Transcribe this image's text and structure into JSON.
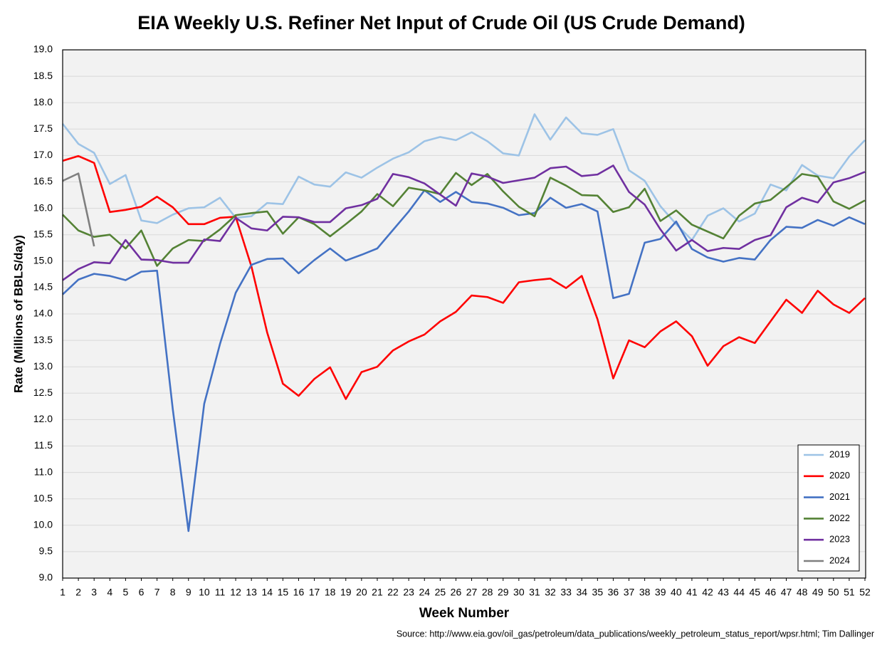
{
  "chart_data": {
    "type": "line",
    "title": "EIA Weekly U.S. Refiner Net Input of Crude Oil (US Crude Demand)",
    "xlabel": "Week Number",
    "ylabel": "Rate (Millions of BBLS/day)",
    "source": "Source: http://www.eia.gov/oil_gas/petroleum/data_publications/weekly_petroleum_status_report/wpsr.html; Tim Dallinger",
    "x": [
      1,
      2,
      3,
      4,
      5,
      6,
      7,
      8,
      9,
      10,
      11,
      12,
      13,
      14,
      15,
      16,
      17,
      18,
      19,
      20,
      21,
      22,
      23,
      24,
      25,
      26,
      27,
      28,
      29,
      30,
      31,
      32,
      33,
      34,
      35,
      36,
      37,
      38,
      39,
      40,
      41,
      42,
      43,
      44,
      45,
      46,
      47,
      48,
      49,
      50,
      51,
      52
    ],
    "xlim": [
      1,
      52
    ],
    "xticks": [
      1,
      2,
      3,
      4,
      5,
      6,
      7,
      8,
      9,
      10,
      11,
      12,
      13,
      14,
      15,
      16,
      17,
      18,
      19,
      20,
      21,
      22,
      23,
      24,
      25,
      26,
      27,
      28,
      29,
      30,
      31,
      32,
      33,
      34,
      35,
      36,
      37,
      38,
      39,
      40,
      41,
      42,
      43,
      44,
      45,
      46,
      47,
      48,
      49,
      50,
      51,
      52
    ],
    "ylim": [
      9,
      19
    ],
    "yticks": [
      {
        "value": 9,
        "label": "9.0"
      },
      {
        "value": 9.5,
        "label": "9.5"
      },
      {
        "value": 10,
        "label": "10.0"
      },
      {
        "value": 10.5,
        "label": "10.5"
      },
      {
        "value": 11,
        "label": "11.0"
      },
      {
        "value": 11.5,
        "label": "11.5"
      },
      {
        "value": 12,
        "label": "12.0"
      },
      {
        "value": 12.5,
        "label": "12.5"
      },
      {
        "value": 13,
        "label": "13.0"
      },
      {
        "value": 13.5,
        "label": "13.5"
      },
      {
        "value": 14,
        "label": "14.0"
      },
      {
        "value": 14.5,
        "label": "14.5"
      },
      {
        "value": 15,
        "label": "15.0"
      },
      {
        "value": 15.5,
        "label": "15.5"
      },
      {
        "value": 16,
        "label": "16.0"
      },
      {
        "value": 16.5,
        "label": "16.5"
      },
      {
        "value": 17,
        "label": "17.0"
      },
      {
        "value": 17.5,
        "label": "17.5"
      },
      {
        "value": 18,
        "label": "18.0"
      },
      {
        "value": 18.5,
        "label": "18.5"
      },
      {
        "value": 19,
        "label": "19.0"
      }
    ],
    "grid": true,
    "legend": "lower right",
    "series": [
      {
        "name": "2019",
        "color": "#9dc3e6",
        "values": [
          17.6,
          17.22,
          17.05,
          16.46,
          16.63,
          15.77,
          15.72,
          15.88,
          16.0,
          16.02,
          16.2,
          15.82,
          15.85,
          16.1,
          16.08,
          16.6,
          16.45,
          16.41,
          16.68,
          16.58,
          16.77,
          16.94,
          17.06,
          17.27,
          17.35,
          17.29,
          17.44,
          17.27,
          17.04,
          17.0,
          17.78,
          17.3,
          17.72,
          17.42,
          17.39,
          17.5,
          16.72,
          16.52,
          16.04,
          15.7,
          15.4,
          15.86,
          16.0,
          15.75,
          15.9,
          16.45,
          16.34,
          16.82,
          16.62,
          16.57,
          16.98,
          17.29
        ]
      },
      {
        "name": "2020",
        "color": "#ff0000",
        "values": [
          16.9,
          16.99,
          16.86,
          15.93,
          15.97,
          16.03,
          16.22,
          16.02,
          15.7,
          15.7,
          15.82,
          15.84,
          14.9,
          13.65,
          12.68,
          12.45,
          12.77,
          12.99,
          12.39,
          12.9,
          13.0,
          13.31,
          13.48,
          13.61,
          13.86,
          14.04,
          14.35,
          14.32,
          14.21,
          14.6,
          14.64,
          14.67,
          14.49,
          14.72,
          13.9,
          12.78,
          13.5,
          13.37,
          13.67,
          13.86,
          13.58,
          13.02,
          13.39,
          13.56,
          13.45,
          13.86,
          14.27,
          14.02,
          14.44,
          14.18,
          14.02,
          14.3
        ]
      },
      {
        "name": "2021",
        "color": "#4472c4",
        "values": [
          14.37,
          14.65,
          14.76,
          14.72,
          14.64,
          14.8,
          14.82,
          12.2,
          9.89,
          12.3,
          13.43,
          14.4,
          14.93,
          15.04,
          15.05,
          14.77,
          15.02,
          15.24,
          15.01,
          15.12,
          15.24,
          15.59,
          15.94,
          16.34,
          16.12,
          16.31,
          16.12,
          16.09,
          16.01,
          15.87,
          15.91,
          16.2,
          16.01,
          16.08,
          15.94,
          14.3,
          14.38,
          15.35,
          15.42,
          15.75,
          15.23,
          15.07,
          14.99,
          15.06,
          15.03,
          15.4,
          15.65,
          15.63,
          15.78,
          15.67,
          15.83,
          15.7
        ]
      },
      {
        "name": "2022",
        "color": "#548235",
        "values": [
          15.88,
          15.58,
          15.46,
          15.5,
          15.24,
          15.58,
          14.91,
          15.24,
          15.4,
          15.38,
          15.6,
          15.87,
          15.91,
          15.94,
          15.52,
          15.83,
          15.7,
          15.47,
          15.7,
          15.94,
          16.27,
          16.04,
          16.39,
          16.34,
          16.27,
          16.67,
          16.44,
          16.65,
          16.32,
          16.03,
          15.85,
          16.58,
          16.43,
          16.25,
          16.24,
          15.93,
          16.02,
          16.37,
          15.76,
          15.96,
          15.69,
          15.56,
          15.43,
          15.86,
          16.09,
          16.16,
          16.4,
          16.65,
          16.6,
          16.13,
          15.99,
          16.15
        ]
      },
      {
        "name": "2023",
        "color": "#7030a0",
        "values": [
          14.64,
          14.85,
          14.98,
          14.96,
          15.4,
          15.03,
          15.02,
          14.97,
          14.97,
          15.41,
          15.38,
          15.82,
          15.62,
          15.58,
          15.84,
          15.83,
          15.74,
          15.74,
          16.0,
          16.06,
          16.18,
          16.65,
          16.59,
          16.47,
          16.26,
          16.05,
          16.66,
          16.6,
          16.48,
          16.53,
          16.58,
          16.76,
          16.79,
          16.61,
          16.64,
          16.81,
          16.31,
          16.07,
          15.6,
          15.2,
          15.4,
          15.19,
          15.25,
          15.23,
          15.4,
          15.49,
          16.02,
          16.2,
          16.11,
          16.49,
          16.57,
          16.69
        ]
      },
      {
        "name": "2024",
        "color": "#7f7f7f",
        "values": [
          16.52,
          16.66,
          15.28,
          null,
          null,
          null,
          null,
          null,
          null,
          null,
          null,
          null,
          null,
          null,
          null,
          null,
          null,
          null,
          null,
          null,
          null,
          null,
          null,
          null,
          null,
          null,
          null,
          null,
          null,
          null,
          null,
          null,
          null,
          null,
          null,
          null,
          null,
          null,
          null,
          null,
          null,
          null,
          null,
          null,
          null,
          null,
          null,
          null,
          null,
          null,
          null,
          null
        ]
      }
    ]
  }
}
